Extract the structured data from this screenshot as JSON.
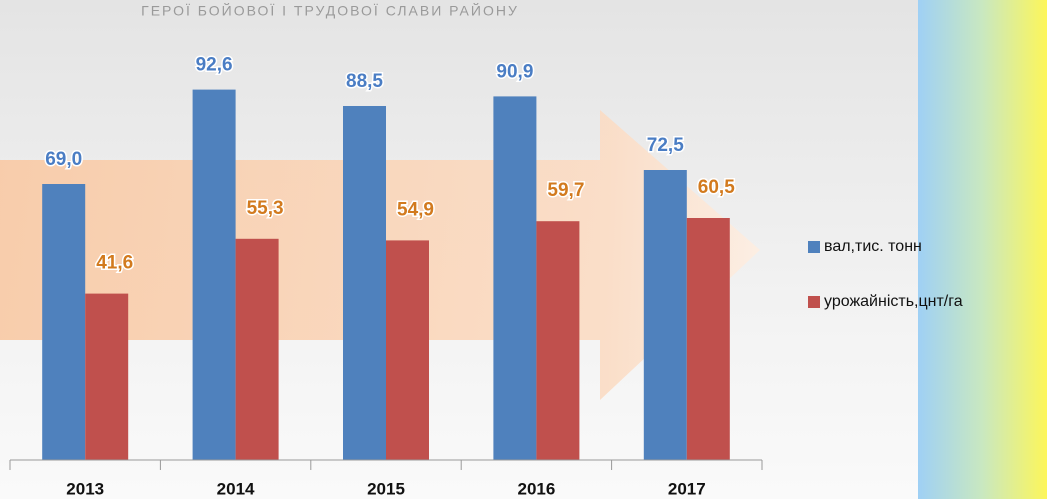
{
  "background_text": "ГЕРОЇ   БОЙОВОЇ   І   ТРУДОВОЇ   СЛАВИ   РАЙОНУ",
  "chart_data": {
    "type": "bar",
    "categories": [
      "2013",
      "2014",
      "2015",
      "2016",
      "2017"
    ],
    "series": [
      {
        "name": "вал,тис. тонн",
        "color": "#4f81bd",
        "label_color": "#4a7dc4",
        "values": [
          69.0,
          92.6,
          88.5,
          90.9,
          72.5
        ],
        "value_labels": [
          "69,0",
          "92,6",
          "88,5",
          "90,9",
          "72,5"
        ]
      },
      {
        "name": "урожайність,цнт/га",
        "color": "#c0504d",
        "label_color": "#d27a1e",
        "values": [
          41.6,
          55.3,
          54.9,
          59.7,
          60.5
        ],
        "value_labels": [
          "41,6",
          "55,3",
          "54,9",
          "59,7",
          "60,5"
        ]
      }
    ],
    "ylim": [
      0,
      100
    ],
    "legend": "right"
  }
}
